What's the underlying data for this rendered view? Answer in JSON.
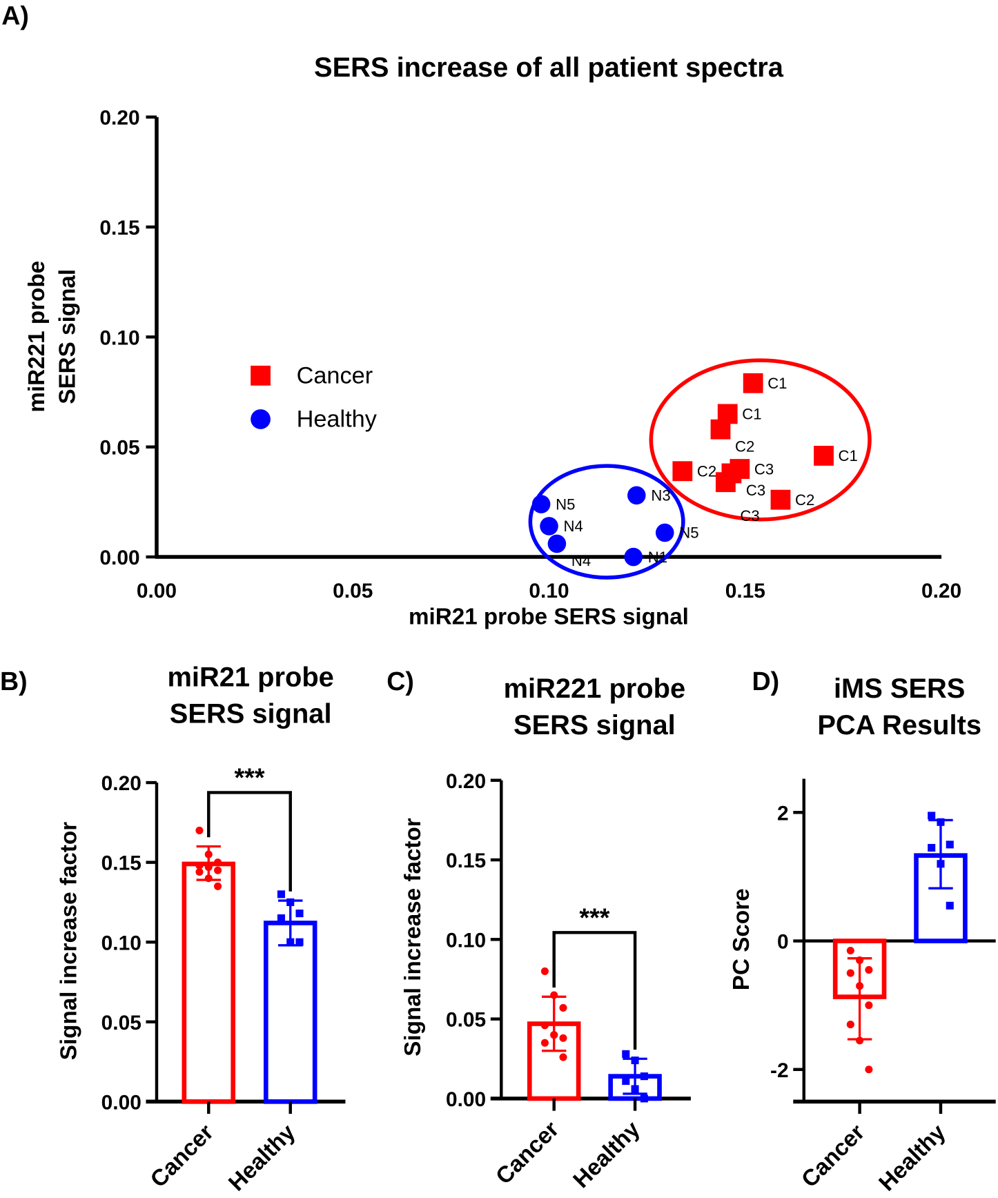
{
  "colors": {
    "cancer": "#ff0000",
    "healthy": "#0000ff"
  },
  "chart_data": [
    {
      "panel": "A)",
      "type": "scatter",
      "title": "SERS increase of all patient spectra",
      "xlabel": "miR21 probe SERS  signal",
      "ylabel": [
        "miR221 probe",
        "SERS signal"
      ],
      "xlim": [
        0,
        0.2
      ],
      "ylim": [
        0,
        0.2
      ],
      "xticks": [
        "0.00",
        "0.05",
        "0.10",
        "0.15",
        "0.20"
      ],
      "yticks": [
        "0.00",
        "0.05",
        "0.10",
        "0.15",
        "0.20"
      ],
      "legend": {
        "placement": "center-left",
        "entries": [
          "Cancer",
          "Healthy"
        ]
      },
      "series": [
        {
          "name": "Cancer",
          "marker": "square",
          "points": [
            {
              "x": 0.152,
              "y": 0.079,
              "label": "C1"
            },
            {
              "x": 0.1455,
              "y": 0.065,
              "label": "C1"
            },
            {
              "x": 0.1437,
              "y": 0.058,
              "label": "C2"
            },
            {
              "x": 0.17,
              "y": 0.046,
              "label": "C1"
            },
            {
              "x": 0.134,
              "y": 0.039,
              "label": "C2"
            },
            {
              "x": 0.1486,
              "y": 0.04,
              "label": "C3"
            },
            {
              "x": 0.1465,
              "y": 0.038,
              "label": "C3"
            },
            {
              "x": 0.145,
              "y": 0.034,
              "label": "C3"
            },
            {
              "x": 0.159,
              "y": 0.026,
              "label": "C2"
            }
          ]
        },
        {
          "name": "Healthy",
          "marker": "circle",
          "points": [
            {
              "x": 0.098,
              "y": 0.024,
              "label": "N5"
            },
            {
              "x": 0.1,
              "y": 0.014,
              "label": "N4"
            },
            {
              "x": 0.102,
              "y": 0.006,
              "label": "N4"
            },
            {
              "x": 0.1223,
              "y": 0.028,
              "label": "N3"
            },
            {
              "x": 0.1295,
              "y": 0.011,
              "label": "N5"
            },
            {
              "x": 0.1215,
              "y": 0.0,
              "label": "N1"
            }
          ]
        }
      ]
    },
    {
      "panel": "B)",
      "type": "bar",
      "title": [
        "miR21 probe",
        "SERS signal"
      ],
      "ylabel": "Signal increase factor",
      "ylim": [
        0,
        0.2
      ],
      "yticks": [
        "0.00",
        "0.05",
        "0.10",
        "0.15",
        "0.20"
      ],
      "categories": [
        "Cancer",
        "Healthy"
      ],
      "means": [
        0.149,
        0.112
      ],
      "error": [
        [
          0.139,
          0.16
        ],
        [
          0.098,
          0.126
        ]
      ],
      "points": [
        [
          0.17,
          0.155,
          0.15,
          0.148,
          0.147,
          0.145,
          0.144,
          0.14,
          0.135
        ],
        [
          0.13,
          0.125,
          0.118,
          0.115,
          0.1,
          0.1
        ]
      ],
      "significance": "***"
    },
    {
      "panel": "C)",
      "type": "bar",
      "title": [
        "miR221 probe",
        "SERS signal"
      ],
      "ylabel": "Signal increase factor",
      "ylim": [
        0,
        0.2
      ],
      "yticks": [
        "0.00",
        "0.05",
        "0.10",
        "0.15",
        "0.20"
      ],
      "categories": [
        "Cancer",
        "Healthy"
      ],
      "means": [
        0.047,
        0.014
      ],
      "error": [
        [
          0.03,
          0.064
        ],
        [
          0.003,
          0.025
        ]
      ],
      "points": [
        [
          0.08,
          0.065,
          0.057,
          0.046,
          0.04,
          0.038,
          0.035,
          0.04,
          0.026
        ],
        [
          0.028,
          0.024,
          0.014,
          0.011,
          0.006,
          0.0
        ]
      ],
      "significance": "***"
    },
    {
      "panel": "D)",
      "type": "bar",
      "title": [
        "iMS SERS",
        "PCA Results"
      ],
      "ylabel": "PC Score",
      "ylim": [
        -2.5,
        2.5
      ],
      "yticks": [
        "-2",
        "0",
        "2"
      ],
      "ytick_values": [
        -2,
        0,
        2
      ],
      "categories": [
        "Cancer",
        "Healthy"
      ],
      "means": [
        -0.87,
        1.33
      ],
      "error": [
        [
          -1.53,
          -0.27
        ],
        [
          0.82,
          1.88
        ]
      ],
      "points": [
        [
          -0.15,
          -0.3,
          -0.45,
          -0.5,
          -0.7,
          -1.0,
          -1.3,
          -1.55,
          -2.0
        ],
        [
          1.95,
          1.85,
          1.5,
          1.45,
          1.2,
          0.55
        ]
      ],
      "significance": ""
    }
  ]
}
